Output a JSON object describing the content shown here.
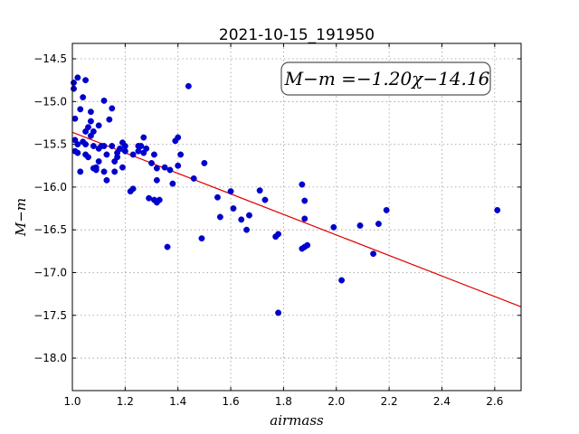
{
  "chart_data": {
    "type": "scatter",
    "title": "2021-10-15_191950",
    "xlabel": "airmass",
    "ylabel": "M−m",
    "xlim": [
      1.0,
      2.7
    ],
    "ylim": [
      -18.38,
      -14.32
    ],
    "y_inverted": true,
    "grid": true,
    "xticks": [
      "1.0",
      "1.2",
      "1.4",
      "1.6",
      "1.8",
      "2.0",
      "2.2",
      "2.4",
      "2.6"
    ],
    "yticks": [
      "−14.5",
      "−15.0",
      "−15.5",
      "−16.0",
      "−16.5",
      "−17.0",
      "−17.5",
      "−18.0"
    ],
    "annotation": "M−m =−1.20χ−14.16",
    "point_color": "#0000cc",
    "fit_color": "#e00000",
    "fit": {
      "slope": -1.2,
      "intercept": -14.16
    },
    "series": [
      {
        "x": [
          1.0,
          1.0,
          1.01,
          1.01,
          1.01,
          1.02,
          1.02,
          1.02,
          1.03,
          1.03,
          1.04,
          1.04,
          1.05,
          1.05,
          1.05,
          1.05,
          1.06,
          1.06,
          1.07,
          1.07,
          1.07,
          1.08,
          1.08,
          1.08,
          1.09,
          1.09,
          1.1,
          1.1,
          1.1,
          1.11,
          1.12,
          1.12,
          1.12,
          1.13,
          1.13,
          1.14,
          1.15,
          1.15,
          1.16,
          1.16,
          1.17,
          1.17,
          1.18,
          1.19,
          1.19,
          1.2,
          1.2,
          1.22,
          1.23,
          1.23,
          1.25,
          1.25,
          1.26,
          1.27,
          1.27,
          1.28,
          1.29,
          1.3,
          1.31,
          1.31,
          1.32,
          1.32,
          1.32,
          1.33,
          1.35,
          1.36,
          1.37,
          1.38,
          1.39,
          1.4,
          1.4,
          1.41,
          1.44,
          1.46,
          1.49,
          1.5,
          1.55,
          1.56,
          1.6,
          1.61,
          1.64,
          1.66,
          1.67,
          1.71,
          1.73,
          1.77,
          1.78,
          1.78,
          1.87,
          1.87,
          1.88,
          1.88,
          1.88,
          1.89,
          1.99,
          2.02,
          2.09,
          2.14,
          2.16,
          2.19,
          2.61
        ],
        "y": [
          -14.78,
          -14.85,
          -15.45,
          -15.2,
          -15.58,
          -14.72,
          -15.5,
          -15.6,
          -15.82,
          -15.09,
          -14.95,
          -15.47,
          -15.5,
          -15.62,
          -15.35,
          -14.75,
          -15.3,
          -15.65,
          -15.12,
          -15.23,
          -15.4,
          -15.78,
          -15.52,
          -15.35,
          -15.8,
          -15.77,
          -15.7,
          -15.55,
          -15.28,
          -15.52,
          -15.82,
          -15.52,
          -14.99,
          -15.92,
          -15.62,
          -15.21,
          -15.08,
          -15.52,
          -15.7,
          -15.82,
          -15.65,
          -15.6,
          -15.55,
          -15.77,
          -15.48,
          -15.52,
          -15.58,
          -16.05,
          -16.02,
          -15.62,
          -15.58,
          -15.52,
          -15.52,
          -15.42,
          -15.6,
          -15.55,
          -16.13,
          -15.72,
          -15.62,
          -16.15,
          -15.92,
          -15.78,
          -16.18,
          -16.15,
          -15.77,
          -16.7,
          -15.8,
          -15.96,
          -15.46,
          -15.42,
          -15.75,
          -15.62,
          -14.82,
          -15.9,
          -16.6,
          -15.72,
          -16.12,
          -16.35,
          -16.05,
          -16.25,
          -16.38,
          -16.5,
          -16.33,
          -16.04,
          -16.15,
          -16.58,
          -17.47,
          -16.55,
          -15.97,
          -16.72,
          -16.37,
          -16.7,
          -16.16,
          -16.68,
          -16.47,
          -17.09,
          -16.45,
          -16.78,
          -16.43,
          -16.27,
          -16.27
        ]
      }
    ]
  }
}
